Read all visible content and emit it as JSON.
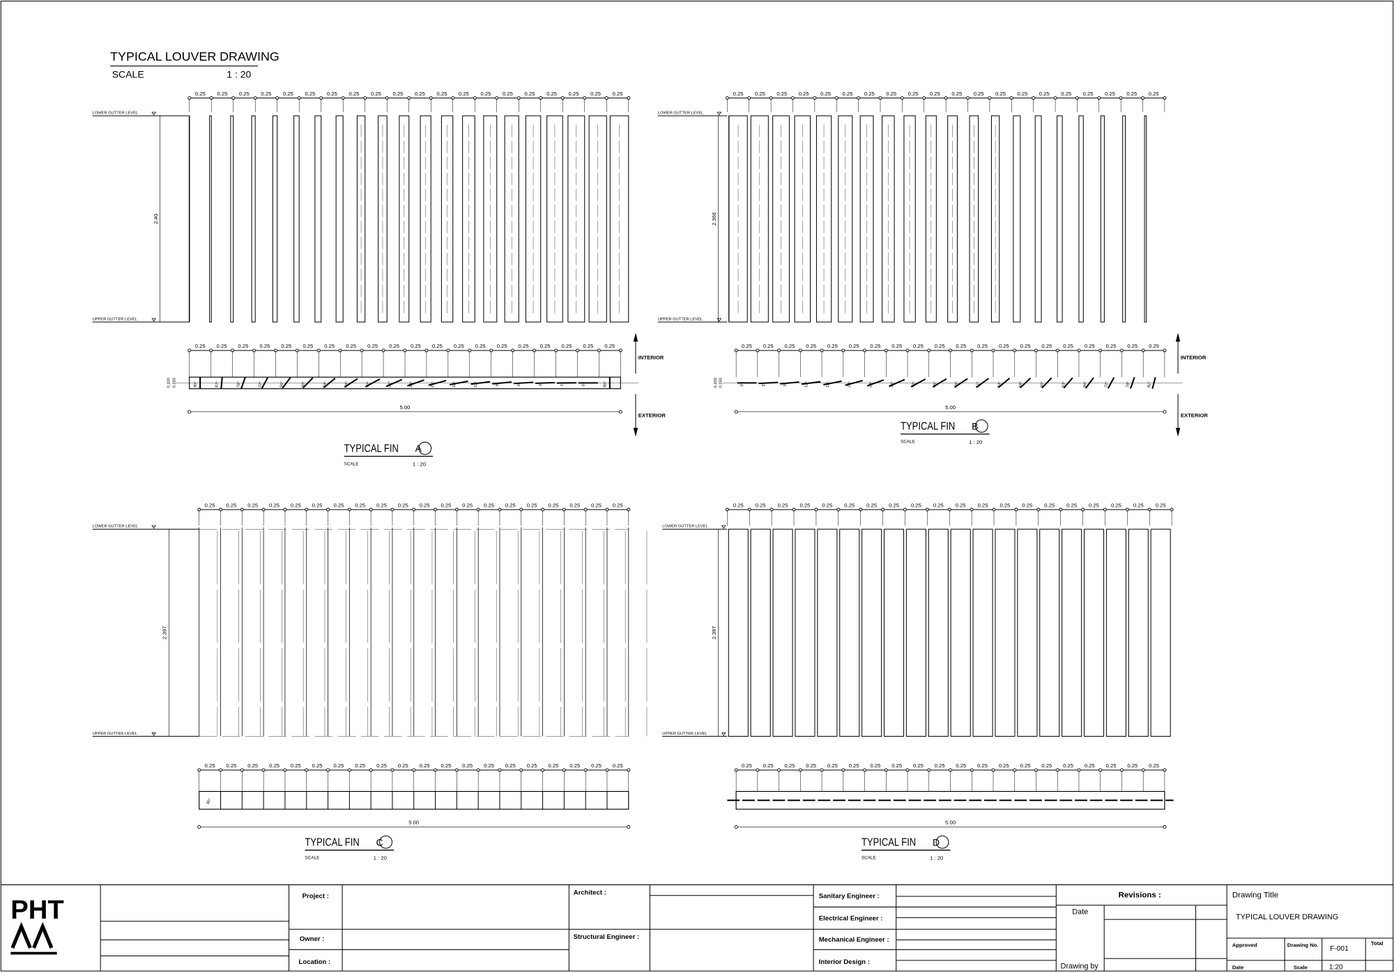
{
  "header": {
    "title": "TYPICAL LOUVER DRAWING",
    "scale_label": "SCALE",
    "scale": "1 : 20"
  },
  "panels": [
    {
      "elevation_dims": [
        "0.25",
        "0.25",
        "0.25",
        "0.25",
        "0.25",
        "0.25",
        "0.25",
        "0.25",
        "0.25",
        "0.25",
        "0.25",
        "0.25",
        "0.25",
        "0.25",
        "0.25",
        "0.25",
        "0.25",
        "0.25",
        "0.25",
        "0.25"
      ],
      "plan_dims": [
        "0.25",
        "0.25",
        "0.25",
        "0.25",
        "0.25",
        "0.25",
        "0.25",
        "0.25",
        "0.25",
        "0.25",
        "0.25",
        "0.25",
        "0.25",
        "0.25",
        "0.25",
        "0.25",
        "0.25",
        "0.25",
        "0.25",
        "0.25"
      ],
      "lower_level": "LOWER GUTTER LEVEL",
      "upper_level": "UPPER GUTTER LEVEL",
      "height": "2.40",
      "width": "5.00",
      "plan_depths": [
        "0.100",
        "0.150"
      ],
      "fin_angles": [
        "90°",
        "87°",
        "78°",
        "72°",
        "66°",
        "60°",
        "54°",
        "48°",
        "42°",
        "36°",
        "30°",
        "24°",
        "18°",
        "12°",
        "9°",
        "6°",
        "3°",
        "1°",
        "0°",
        "90°"
      ],
      "interior": "INTERIOR",
      "exterior": "EXTERIOR",
      "fin_title": "TYPICAL FIN",
      "fin_letter": "A",
      "scale_label": "SCALE",
      "scale": "1 : 20"
    },
    {
      "elevation_dims": [
        "0.25",
        "0.25",
        "0.25",
        "0.25",
        "0.25",
        "0.25",
        "0.25",
        "0.25",
        "0.25",
        "0.25",
        "0.25",
        "0.25",
        "0.25",
        "0.25",
        "0.25",
        "0.25",
        "0.25",
        "0.25",
        "0.25",
        "0.25"
      ],
      "plan_dims": [
        "0.25",
        "0.25",
        "0.25",
        "0.25",
        "0.25",
        "0.25",
        "0.25",
        "0.25",
        "0.25",
        "0.25",
        "0.25",
        "0.25",
        "0.25",
        "0.25",
        "0.25",
        "0.25",
        "0.25",
        "0.25",
        "0.25",
        "0.25"
      ],
      "lower_level": "LOWER GUTTER LEVEL",
      "upper_level": "UPPER GUTTER LEVEL",
      "height": "2.366",
      "width": "5.00",
      "plan_depths": [
        "0.100",
        "0.150"
      ],
      "fin_angles": [
        "0°",
        "5°",
        "9°",
        "12°",
        "18°",
        "24°",
        "30°",
        "36°",
        "42°",
        "45°",
        "48°",
        "51°",
        "54°",
        "58°",
        "60°",
        "63°",
        "66°",
        "72°",
        "78°",
        "81°"
      ],
      "interior": "INTERIOR",
      "exterior": "EXTERIOR",
      "fin_title": "TYPICAL FIN",
      "fin_letter": "B",
      "scale_label": "SCALE",
      "scale": "1 : 20"
    },
    {
      "elevation_dims": [
        "0.25",
        "0.25",
        "0.25",
        "0.25",
        "0.25",
        "0.25",
        "0.25",
        "0.25",
        "0.25",
        "0.25",
        "0.25",
        "0.25",
        "0.25",
        "0.25",
        "0.25",
        "0.25",
        "0.25",
        "0.25",
        "0.25",
        "0.25"
      ],
      "plan_dims": [
        "0.25",
        "0.25",
        "0.25",
        "0.25",
        "0.25",
        "0.25",
        "0.25",
        "0.25",
        "0.25",
        "0.25",
        "0.25",
        "0.25",
        "0.25",
        "0.25",
        "0.25",
        "0.25",
        "0.25",
        "0.25",
        "0.25",
        "0.25"
      ],
      "lower_level": "LOWER GUTTER LEVEL",
      "upper_level": "UPPER GUTTER LEVEL",
      "height": "2.397",
      "width": "5.00",
      "fin_angles": [
        "90°"
      ],
      "fin_title": "TYPICAL FIN",
      "fin_letter": "C",
      "scale_label": "SCALE",
      "scale": "1 : 20"
    },
    {
      "elevation_dims": [
        "0.25",
        "0.25",
        "0.25",
        "0.25",
        "0.25",
        "0.25",
        "0.25",
        "0.25",
        "0.25",
        "0.25",
        "0.25",
        "0.25",
        "0.25",
        "0.25",
        "0.25",
        "0.25",
        "0.25",
        "0.25",
        "0.25",
        "0.25"
      ],
      "plan_dims": [
        "0.25",
        "0.25",
        "0.25",
        "0.25",
        "0.25",
        "0.25",
        "0.25",
        "0.25",
        "0.25",
        "0.25",
        "0.25",
        "0.25",
        "0.25",
        "0.25",
        "0.25",
        "0.25",
        "0.25",
        "0.25",
        "0.25",
        "0.25"
      ],
      "lower_level": "LOWER GUTTER LEVEL",
      "upper_level": "UPPER GUTTER LEVEL",
      "height": "2.397",
      "width": "5.00",
      "fin_title": "TYPICAL FIN",
      "fin_letter": "D",
      "scale_label": "SCALE",
      "scale": "1 : 20"
    }
  ],
  "title_block": {
    "logo": "PHT",
    "project": "Project :",
    "owner": "Owner :",
    "location": "Location :",
    "architect": "Architect :",
    "structural": "Structural Engineer :",
    "sanitary": "Sanitary Engineer :",
    "electrical": "Electrical Engineer :",
    "mechanical": "Mechanical Engineer :",
    "interior": "Interior Design :",
    "revisions": "Revisions :",
    "date": "Date",
    "drawing_by": "Drawing by",
    "drawing_title_label": "Drawing Title",
    "drawing_title": "TYPICAL LOUVER DRAWING",
    "approved": "Approved",
    "drawing_no_label": "Drawing No.",
    "drawing_no": "F-001",
    "total": "Total",
    "date_label": "Date",
    "scale_label": "Scale",
    "scale": "1:20"
  }
}
